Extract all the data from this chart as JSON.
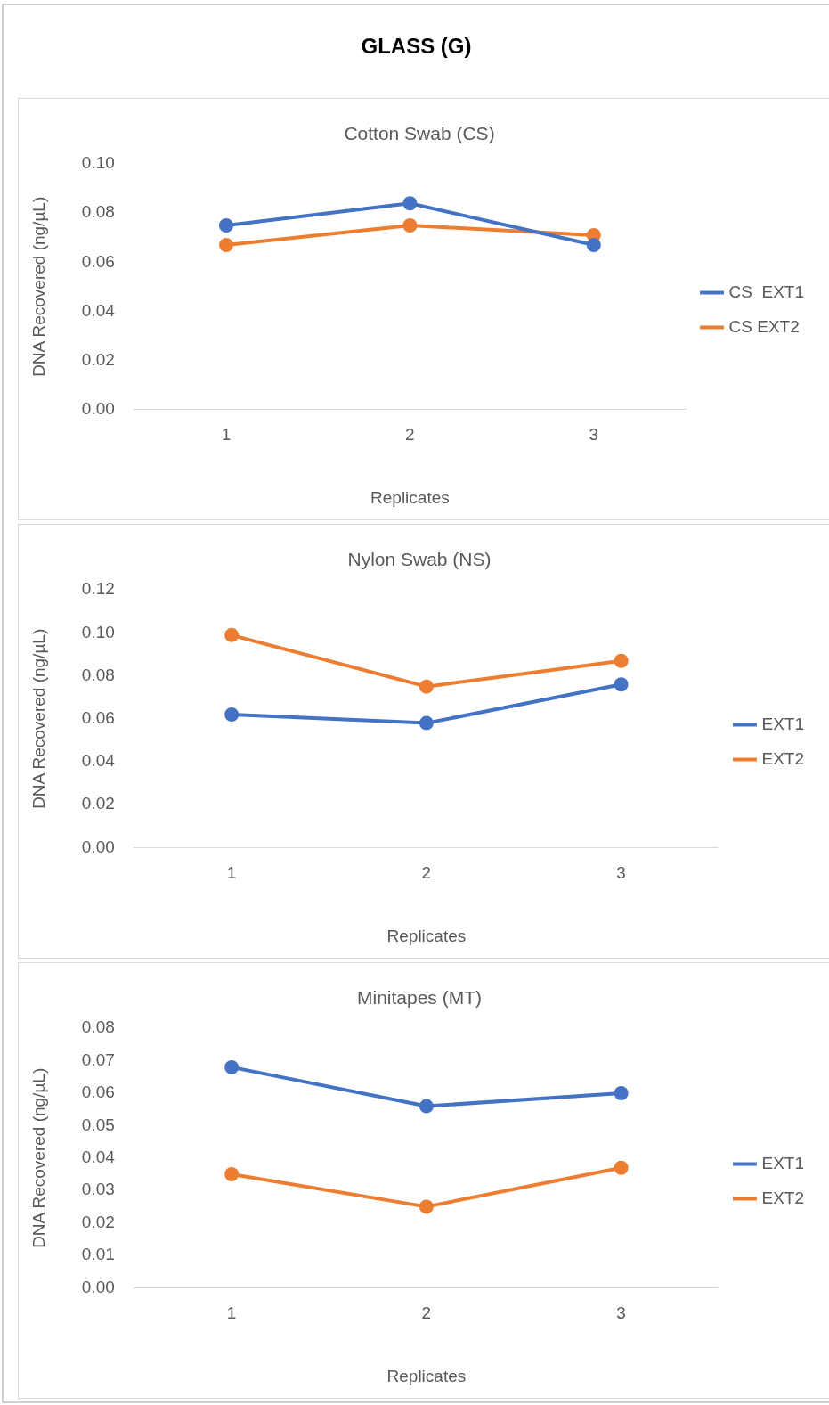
{
  "chart_data": [
    {
      "type": "line",
      "title": "GLASS (G)",
      "subtitle": "Cotton Swab (CS)",
      "xlabel": "Replicates",
      "ylabel": "DNA Recovered (ng/µL)",
      "categories": [
        "1",
        "2",
        "3"
      ],
      "series": [
        {
          "name": "CS  EXT1",
          "color": "#4472c4",
          "values": [
            0.075,
            0.084,
            0.067
          ]
        },
        {
          "name": "CS EXT2",
          "color": "#ed7d31",
          "values": [
            0.067,
            0.075,
            0.071
          ]
        }
      ],
      "ylim": [
        0,
        0.1
      ],
      "yticks": [
        {
          "value": 0,
          "label": "0.00"
        },
        {
          "value": 0.02,
          "label": "0.02"
        },
        {
          "value": 0.04,
          "label": "0.04"
        },
        {
          "value": 0.06,
          "label": "0.06"
        },
        {
          "value": 0.08,
          "label": "0.08"
        },
        {
          "value": 0.1,
          "label": "0.10"
        }
      ],
      "legend": "right",
      "marker": "circle",
      "line_style": "solid"
    },
    {
      "type": "line",
      "title": "Nylon Swab (NS)",
      "xlabel": "Replicates",
      "ylabel": "DNA Recovered (ng/µL)",
      "categories": [
        "1",
        "2",
        "3"
      ],
      "series": [
        {
          "name": "EXT1",
          "color": "#4472c4",
          "values": [
            0.062,
            0.058,
            0.076
          ]
        },
        {
          "name": "EXT2",
          "color": "#ed7d31",
          "values": [
            0.099,
            0.075,
            0.087
          ]
        }
      ],
      "ylim": [
        0,
        0.12
      ],
      "yticks": [
        {
          "value": 0,
          "label": "0.00"
        },
        {
          "value": 0.02,
          "label": "0.02"
        },
        {
          "value": 0.04,
          "label": "0.04"
        },
        {
          "value": 0.06,
          "label": "0.06"
        },
        {
          "value": 0.08,
          "label": "0.08"
        },
        {
          "value": 0.1,
          "label": "0.10"
        },
        {
          "value": 0.12,
          "label": "0.12"
        }
      ],
      "legend": "right",
      "marker": "circle",
      "line_style": "solid"
    },
    {
      "type": "line",
      "title": "Minitapes (MT)",
      "xlabel": "Replicates",
      "ylabel": "DNA Recovered (ng/µL)",
      "categories": [
        "1",
        "2",
        "3"
      ],
      "series": [
        {
          "name": "EXT1",
          "color": "#4472c4",
          "values": [
            0.068,
            0.056,
            0.06
          ]
        },
        {
          "name": "EXT2",
          "color": "#ed7d31",
          "values": [
            0.035,
            0.025,
            0.037
          ]
        }
      ],
      "ylim": [
        0,
        0.08
      ],
      "yticks": [
        {
          "value": 0,
          "label": "0.00"
        },
        {
          "value": 0.01,
          "label": "0.01"
        },
        {
          "value": 0.02,
          "label": "0.02"
        },
        {
          "value": 0.03,
          "label": "0.03"
        },
        {
          "value": 0.04,
          "label": "0.04"
        },
        {
          "value": 0.05,
          "label": "0.05"
        },
        {
          "value": 0.06,
          "label": "0.06"
        },
        {
          "value": 0.07,
          "label": "0.07"
        },
        {
          "value": 0.08,
          "label": "0.08"
        }
      ],
      "legend": "right",
      "marker": "circle",
      "line_style": "solid"
    }
  ]
}
